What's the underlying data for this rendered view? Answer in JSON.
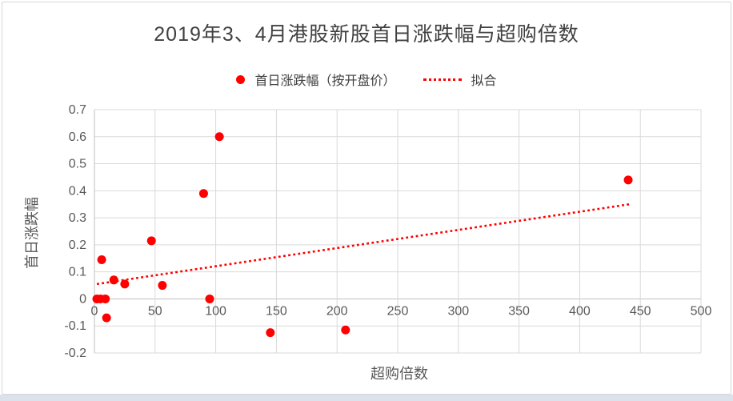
{
  "title": "2019年3、4月港股新股首日涨跌幅与超购倍数",
  "legend": {
    "items": [
      {
        "label": "首日涨跌幅（按开盘价）",
        "marker": "dot"
      },
      {
        "label": "拟合",
        "marker": "dotted-line"
      }
    ]
  },
  "colors": {
    "series": "#ff0000",
    "grid": "#d9d9d9",
    "axis": "#bfbfbf",
    "tick_text": "#595959",
    "title_text": "#404040"
  },
  "chart_data": {
    "type": "scatter",
    "title": "2019年3、4月港股新股首日涨跌幅与超购倍数",
    "xlabel": "超购倍数",
    "ylabel": "首日涨跌幅",
    "xlim": [
      0,
      500
    ],
    "ylim": [
      -0.2,
      0.7
    ],
    "xticks": [
      "0",
      "50",
      "100",
      "150",
      "200",
      "250",
      "300",
      "350",
      "400",
      "450",
      "500"
    ],
    "yticks": [
      "0.7",
      "0.6",
      "0.5",
      "0.4",
      "0.3",
      "0.2",
      "0.1",
      "0",
      "-0.1",
      "-0.2"
    ],
    "grid": true,
    "legend_position": "top",
    "series": [
      {
        "name": "首日涨跌幅（按开盘价）",
        "type": "scatter",
        "color": "#ff0000",
        "points": [
          [
            2,
            0
          ],
          [
            5,
            0
          ],
          [
            9,
            0
          ],
          [
            6,
            0.145
          ],
          [
            10,
            -0.07
          ],
          [
            16,
            0.07
          ],
          [
            25,
            0.055
          ],
          [
            47,
            0.215
          ],
          [
            56,
            0.05
          ],
          [
            90,
            0.39
          ],
          [
            95,
            0
          ],
          [
            103,
            0.6
          ],
          [
            145,
            -0.125
          ],
          [
            207,
            -0.115
          ],
          [
            440,
            0.44
          ]
        ]
      },
      {
        "name": "拟合",
        "type": "line",
        "style": "dotted",
        "color": "#ff0000",
        "points": [
          [
            2,
            0.055
          ],
          [
            441,
            0.35
          ]
        ]
      }
    ]
  }
}
